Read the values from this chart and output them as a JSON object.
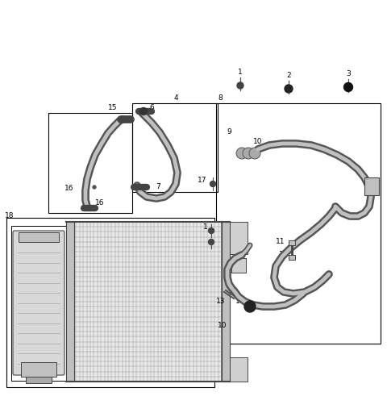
{
  "bg_color": "#ffffff",
  "line_color": "#000000",
  "dark_gray": "#444444",
  "mid_gray": "#666666",
  "light_gray": "#aaaaaa",
  "hose_outer": "#555555",
  "hose_inner": "#b0b0b0",
  "cond_fill": "#e0e0e0",
  "cond_grid": "#999999",
  "fig_w": 4.8,
  "fig_h": 5.12,
  "dpi": 100
}
